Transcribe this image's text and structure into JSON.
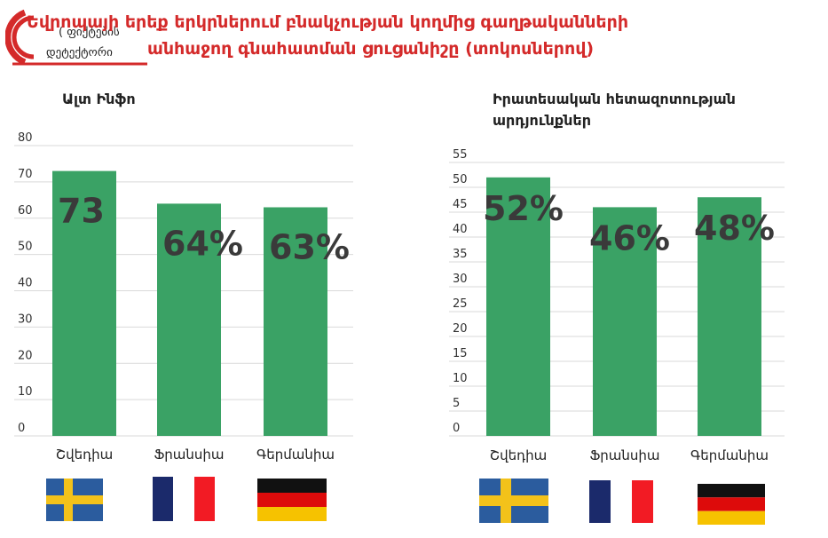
{
  "title": {
    "line1": "Եվրոպայի երեք երկրներում բնակչության կողմից գաղթականների",
    "line2": "անհաջող գնահատման ցուցանիշը  (տոկոսներով)"
  },
  "logo": {
    "text1": "( ფიქტების",
    "text2": "დეტექტორი"
  },
  "colors": {
    "bar": "#3aa265",
    "title": "#d42a2a",
    "grid": "#d9d9d9",
    "value_label": "#3a3a3a"
  },
  "chart_data": [
    {
      "type": "bar",
      "title": "Ալտ Ինֆո",
      "categories": [
        "Շվեդիա",
        "Ֆրանսիա",
        "Գերմանիա"
      ],
      "values": [
        73,
        64,
        63
      ],
      "value_labels": [
        "73",
        "64%",
        "63%"
      ],
      "ylim": [
        0,
        80
      ],
      "yticks": [
        0,
        10,
        20,
        30,
        40,
        50,
        60,
        70,
        80
      ],
      "grid": true,
      "xlabel": "",
      "ylabel": ""
    },
    {
      "type": "bar",
      "title_lines": [
        "Իրատեսական հետազոտության",
        "արդյունքներ"
      ],
      "categories": [
        "Շվեդիա",
        "Ֆրանսիա",
        "Գերմանիա"
      ],
      "values": [
        52,
        46,
        48
      ],
      "value_labels": [
        "52%",
        "46%",
        "48%"
      ],
      "ylim": [
        0,
        55
      ],
      "yticks": [
        0,
        5,
        10,
        15,
        20,
        25,
        30,
        35,
        40,
        45,
        50,
        55
      ],
      "grid": true,
      "xlabel": "",
      "ylabel": ""
    }
  ],
  "flags": [
    "sweden-flag",
    "france-flag",
    "germany-flag"
  ]
}
